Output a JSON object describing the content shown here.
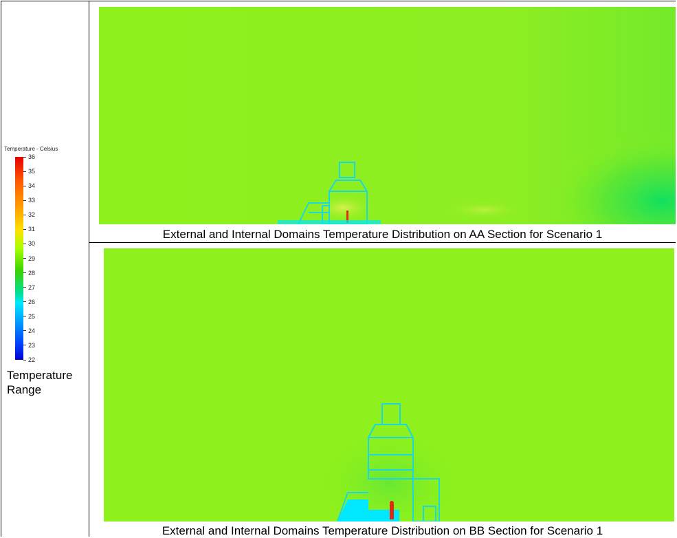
{
  "legend": {
    "title": "Temperature - Celsius",
    "ticks": [
      "36",
      "35",
      "34",
      "33",
      "32",
      "31",
      "30",
      "29",
      "28",
      "27",
      "26",
      "25",
      "24",
      "23",
      "22"
    ],
    "caption": "Temperature Range"
  },
  "colors": {
    "hot": "#e60000",
    "ambient": "#8ef01c",
    "cool": "#00e8ff",
    "cold": "#0000d0"
  },
  "panels": [
    {
      "caption": "External and Internal Domains Temperature Distribution on AA Section for Scenario 1"
    },
    {
      "caption": "External and Internal Domains Temperature Distribution on BB Section for Scenario 1"
    }
  ]
}
